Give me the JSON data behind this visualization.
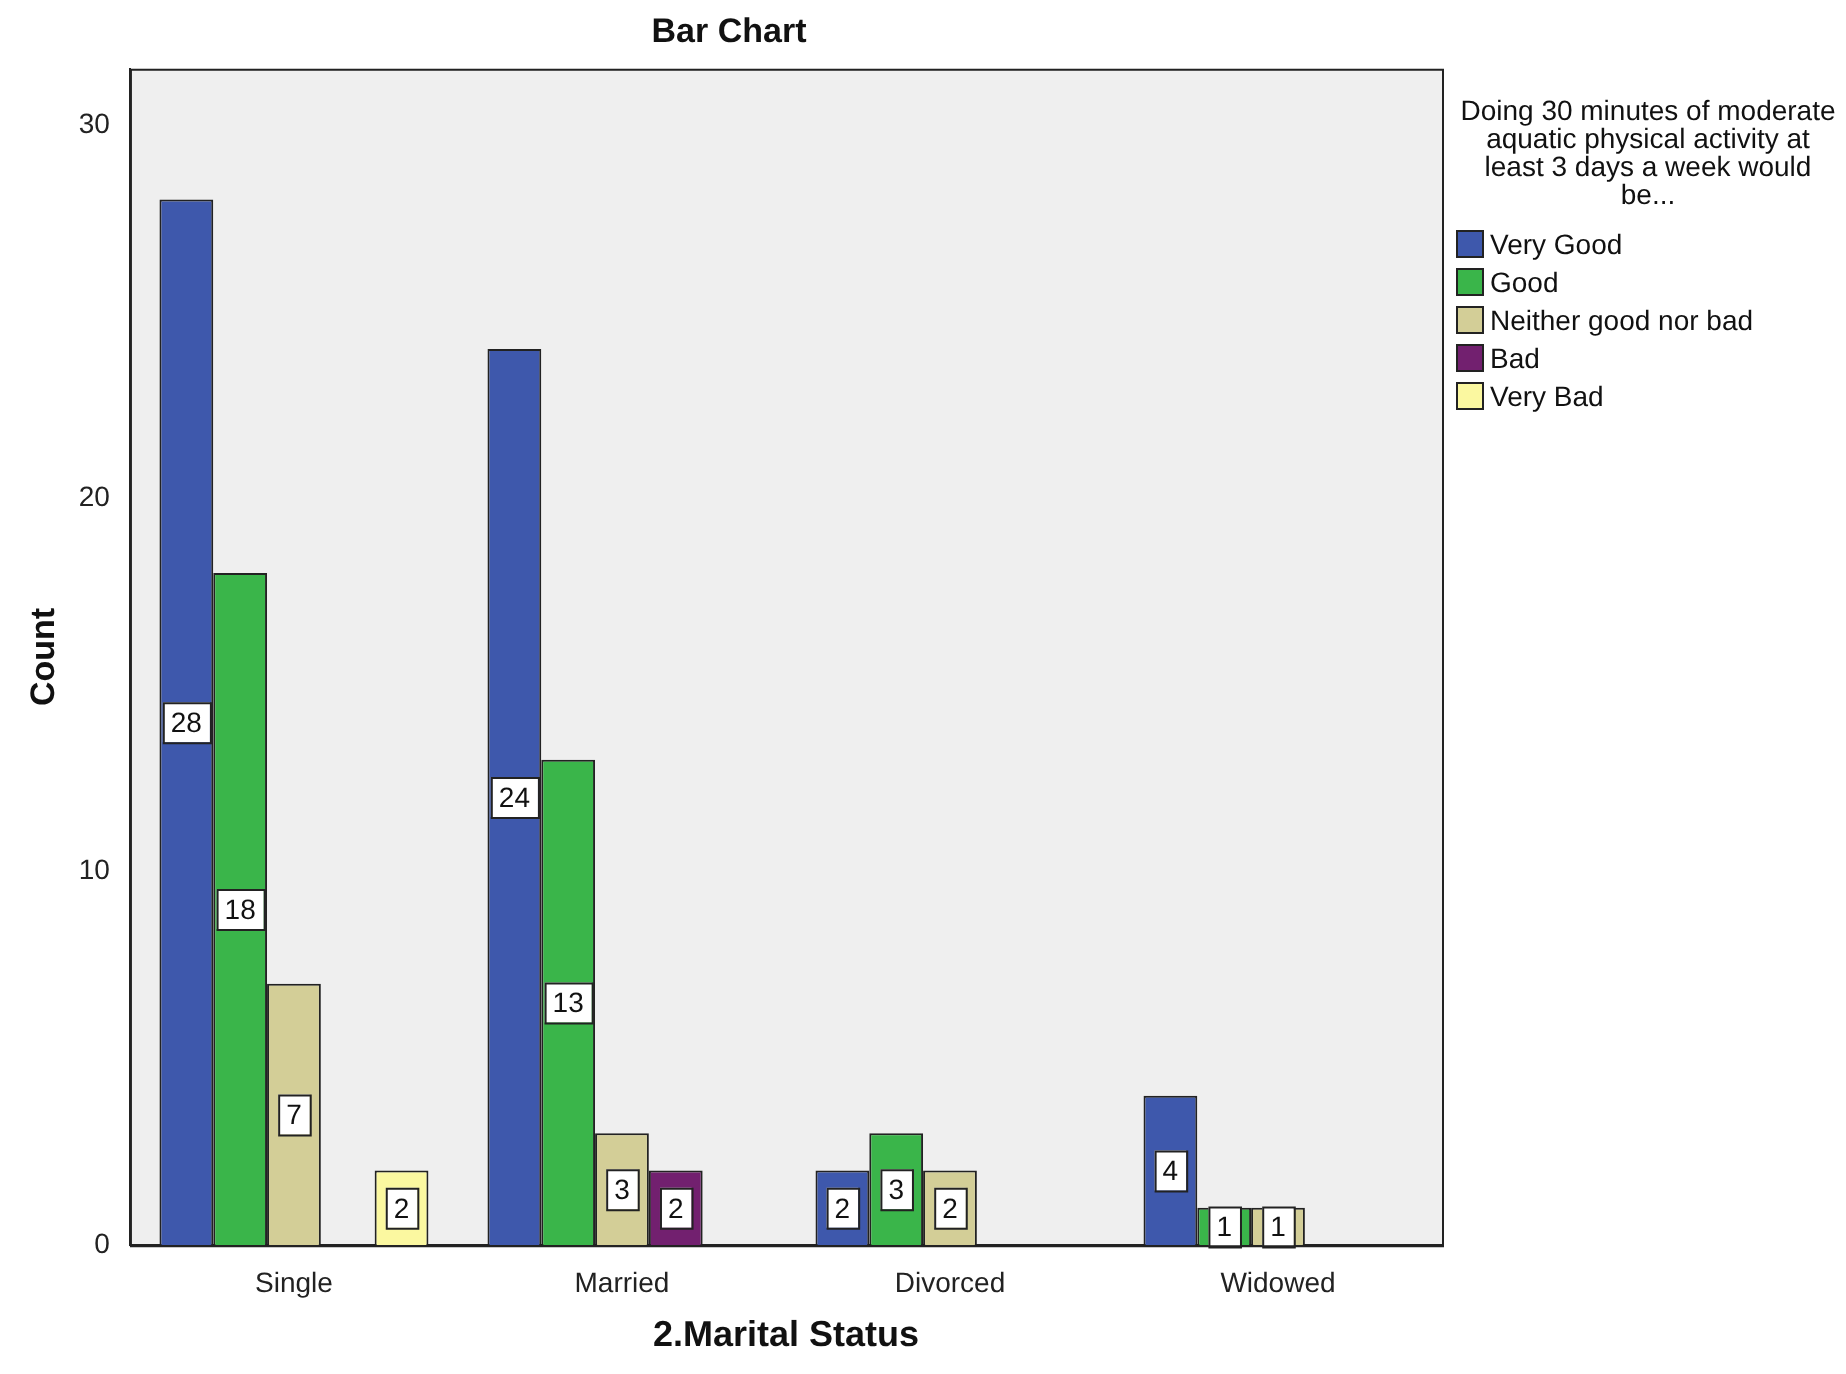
{
  "chart_data": {
    "type": "bar",
    "title": "Bar Chart",
    "xlabel": "2.Marital Status",
    "ylabel": "Count",
    "legend_title": "Doing 30 minutes of moderate aquatic physical activity at least 3 days a week would be...",
    "categories": [
      "Single",
      "Married",
      "Divorced",
      "Widowed"
    ],
    "series": [
      {
        "name": "Very Good",
        "color": "#3e58ac",
        "values": [
          28,
          24,
          2,
          4
        ]
      },
      {
        "name": "Good",
        "color": "#3ab54a",
        "values": [
          18,
          13,
          3,
          1
        ]
      },
      {
        "name": "Neither good nor bad",
        "color": "#d3ce97",
        "values": [
          7,
          3,
          2,
          1
        ]
      },
      {
        "name": "Bad",
        "color": "#72206f",
        "values": [
          null,
          2,
          null,
          null
        ]
      },
      {
        "name": "Very Bad",
        "color": "#fbf8a0",
        "values": [
          2,
          null,
          null,
          null
        ]
      }
    ],
    "ylim": [
      0,
      31.5
    ],
    "yticks": [
      0,
      10,
      20,
      30
    ],
    "grid": false,
    "legend": "right",
    "data_labels": true
  }
}
